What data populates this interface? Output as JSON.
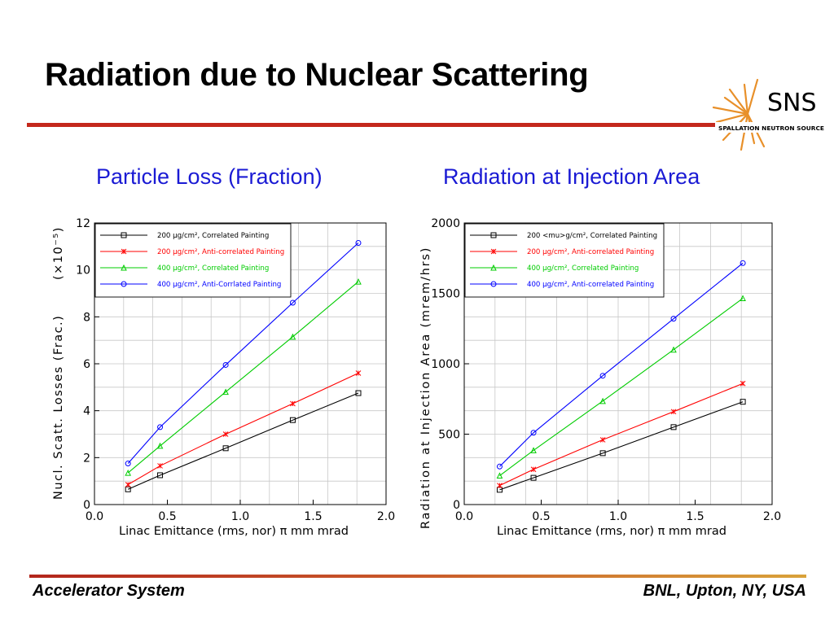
{
  "slide": {
    "title": "Radiation due to Nuclear Scattering",
    "footer_left": "Accelerator System",
    "footer_right": "BNL, Upton, NY, USA",
    "logo_text": "SNS",
    "logo_subtext": "SPALLATION NEUTRON SOURCE"
  },
  "colors": {
    "title_rule": "#c4281c",
    "heading": "#1a1ad4",
    "logo_star": "#e8902a"
  },
  "chart_data": [
    {
      "heading": "Particle Loss (Fraction)",
      "type": "line",
      "xlabel": "Linac Emittance (rms, nor) π mm mrad",
      "ylabel": "Nucl. Scatt. Losses (Frac.)",
      "ylabel_multiplier": "(×10⁻⁵)",
      "xlim": [
        0.0,
        2.0
      ],
      "ylim": [
        0,
        12
      ],
      "xticks": [
        "0.0",
        "0.5",
        "1.0",
        "1.5",
        "2.0"
      ],
      "yticks": [
        "0",
        "2",
        "4",
        "6",
        "8",
        "10",
        "12"
      ],
      "x": [
        0.23,
        0.45,
        0.9,
        1.36,
        1.81
      ],
      "legend_position": "top-left",
      "series": [
        {
          "name": "200 μg/cm², Correlated Painting",
          "color": "#000000",
          "marker": "square",
          "values": [
            0.65,
            1.25,
            2.4,
            3.6,
            4.75
          ]
        },
        {
          "name": "200 μg/cm², Anti-correlated Painting",
          "color": "#ff0000",
          "marker": "x",
          "values": [
            0.85,
            1.65,
            3.0,
            4.3,
            5.6
          ]
        },
        {
          "name": "400 μg/cm², Correlated Painting",
          "color": "#00cc00",
          "marker": "triangle",
          "values": [
            1.35,
            2.5,
            4.8,
            7.15,
            9.5
          ]
        },
        {
          "name": "400 μg/cm², Anti-Corrlated Painting",
          "color": "#0000ff",
          "marker": "circle",
          "values": [
            1.75,
            3.3,
            5.95,
            8.6,
            11.15
          ]
        }
      ]
    },
    {
      "heading": "Radiation at Injection Area",
      "type": "line",
      "xlabel": "Linac Emittance (rms, nor) π mm mrad",
      "ylabel": "Radiation at Injection Area (mrem/hrs)",
      "xlim": [
        0.0,
        2.0
      ],
      "ylim": [
        0,
        2000
      ],
      "xticks": [
        "0.0",
        "0.5",
        "1.0",
        "1.5",
        "2.0"
      ],
      "yticks": [
        "0",
        "500",
        "1000",
        "1500",
        "2000"
      ],
      "x": [
        0.23,
        0.45,
        0.9,
        1.36,
        1.81
      ],
      "legend_position": "top-left",
      "series": [
        {
          "name": "200 <mu>g/cm², Correlated Painting",
          "color": "#000000",
          "marker": "square",
          "values": [
            105,
            190,
            365,
            550,
            730
          ]
        },
        {
          "name": "200 μg/cm², Anti-correlated Painting",
          "color": "#ff0000",
          "marker": "x",
          "values": [
            135,
            250,
            460,
            660,
            860
          ]
        },
        {
          "name": "400 μg/cm², Correlated Painting",
          "color": "#00cc00",
          "marker": "triangle",
          "values": [
            205,
            385,
            735,
            1100,
            1465
          ]
        },
        {
          "name": "400 μg/cm², Anti-correlated Painting",
          "color": "#0000ff",
          "marker": "circle",
          "values": [
            270,
            510,
            915,
            1320,
            1715
          ]
        }
      ]
    }
  ]
}
